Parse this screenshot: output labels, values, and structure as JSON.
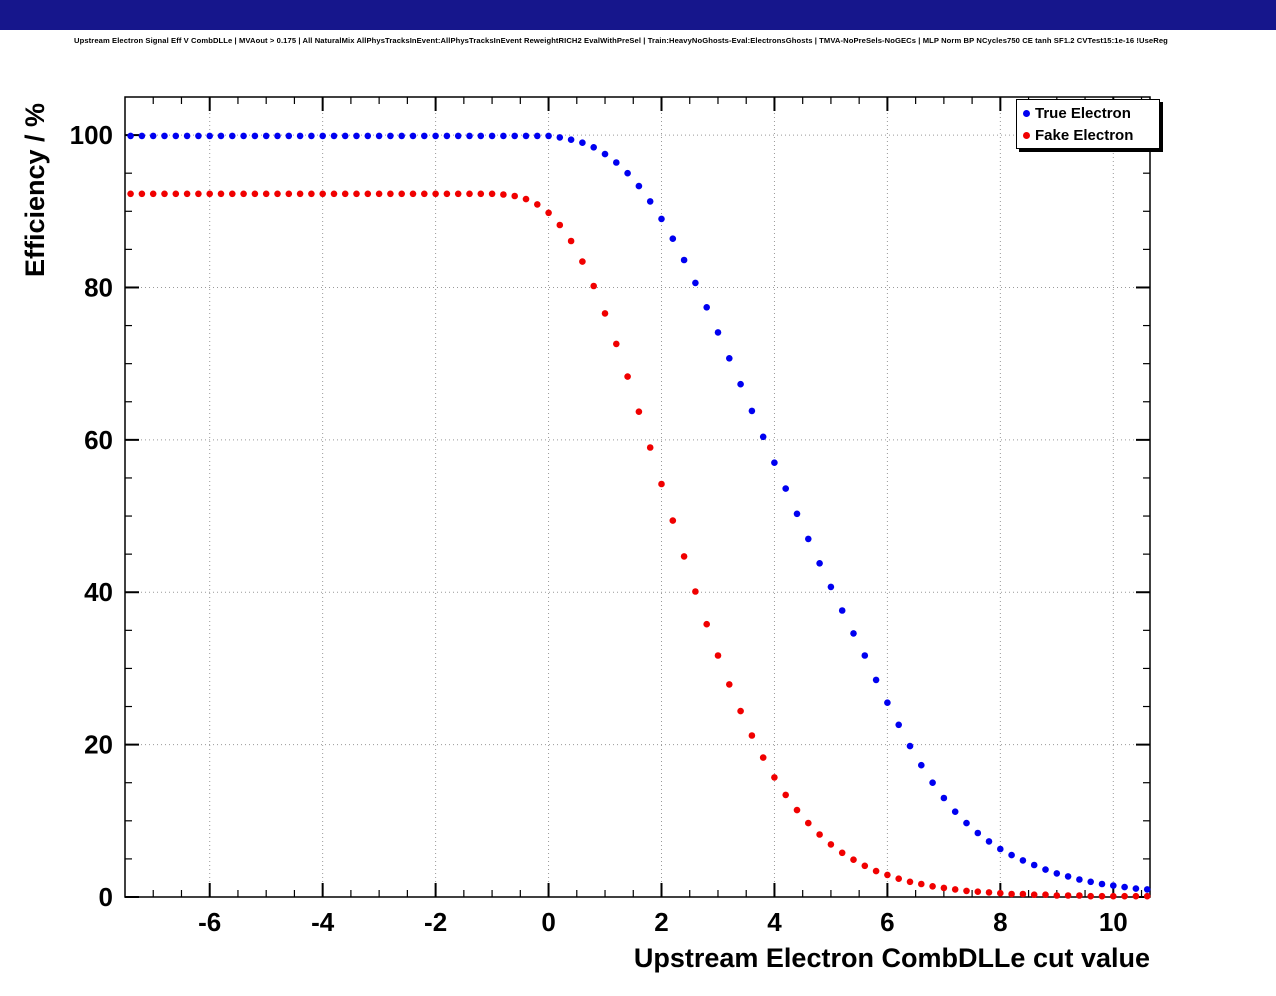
{
  "page": {
    "background": "#ffffff",
    "header_bar_color": "#16168c"
  },
  "header": {
    "title": "Upstream Electron Signal Eff V CombDLLe | MVAout > 0.175 | All NaturalMix AllPhysTracksInEvent:AllPhysTracksInEvent ReweightRICH2 EvalWithPreSel | Train:HeavyNoGhosts-Eval:ElectronsGhosts | TMVA-NoPreSels-NoGECs | MLP Norm BP NCycles750 CE tanh SF1.2 CVTest15:1e-16 !UseReg"
  },
  "chart_data": {
    "type": "scatter",
    "title": "",
    "xlabel": "Upstream Electron CombDLLe cut value",
    "ylabel": "Efficiency / %",
    "xlim": [
      -7.5,
      10.65
    ],
    "ylim": [
      0,
      105
    ],
    "xticks": [
      -6,
      -4,
      -2,
      0,
      2,
      4,
      6,
      8,
      10
    ],
    "yticks": [
      0,
      20,
      40,
      60,
      80,
      100
    ],
    "minor_x_step": 0.5,
    "minor_y_step": 5,
    "grid": "dotted",
    "grid_color": "#999999",
    "legend_position": "top-right",
    "marker_radius": 3.3,
    "x": [
      -7.4,
      -7.2,
      -7,
      -6.8,
      -6.6,
      -6.4,
      -6.2,
      -6,
      -5.8,
      -5.6,
      -5.4,
      -5.2,
      -5,
      -4.8,
      -4.6,
      -4.4,
      -4.2,
      -4,
      -3.8,
      -3.6,
      -3.4,
      -3.2,
      -3,
      -2.8,
      -2.6,
      -2.4,
      -2.2,
      -2,
      -1.8,
      -1.6,
      -1.4,
      -1.2,
      -1,
      -0.8,
      -0.6,
      -0.4,
      -0.2,
      0,
      0.2,
      0.4,
      0.6,
      0.8,
      1,
      1.2,
      1.4,
      1.6,
      1.8,
      2,
      2.2,
      2.4,
      2.6,
      2.8,
      3,
      3.2,
      3.4,
      3.6,
      3.8,
      4,
      4.2,
      4.4,
      4.6,
      4.8,
      5,
      5.2,
      5.4,
      5.6,
      5.8,
      6,
      6.2,
      6.4,
      6.6,
      6.8,
      7,
      7.2,
      7.4,
      7.6,
      7.8,
      8,
      8.2,
      8.4,
      8.6,
      8.8,
      9,
      9.2,
      9.4,
      9.6,
      9.8,
      10,
      10.2,
      10.4,
      10.6
    ],
    "series": [
      {
        "name": "True Electron",
        "color": "#0000f0",
        "values": [
          99.9,
          99.9,
          99.9,
          99.9,
          99.9,
          99.9,
          99.9,
          99.9,
          99.9,
          99.9,
          99.9,
          99.9,
          99.9,
          99.9,
          99.9,
          99.9,
          99.9,
          99.9,
          99.9,
          99.9,
          99.9,
          99.9,
          99.9,
          99.9,
          99.9,
          99.9,
          99.9,
          99.9,
          99.9,
          99.9,
          99.9,
          99.9,
          99.9,
          99.9,
          99.9,
          99.9,
          99.9,
          99.9,
          99.7,
          99.4,
          99.0,
          98.4,
          97.5,
          96.4,
          95.0,
          93.3,
          91.3,
          89.0,
          86.4,
          83.6,
          80.6,
          77.4,
          74.1,
          70.7,
          67.3,
          63.8,
          60.4,
          57.0,
          53.6,
          50.3,
          47.0,
          43.8,
          40.7,
          37.6,
          34.6,
          31.7,
          28.5,
          25.5,
          22.6,
          19.8,
          17.3,
          15.0,
          13.0,
          11.2,
          9.7,
          8.4,
          7.3,
          6.3,
          5.5,
          4.8,
          4.2,
          3.6,
          3.1,
          2.7,
          2.3,
          2.0,
          1.7,
          1.5,
          1.3,
          1.1,
          1.0
        ]
      },
      {
        "name": "Fake Electron",
        "color": "#f00000",
        "values": [
          92.3,
          92.3,
          92.3,
          92.3,
          92.3,
          92.3,
          92.3,
          92.3,
          92.3,
          92.3,
          92.3,
          92.3,
          92.3,
          92.3,
          92.3,
          92.3,
          92.3,
          92.3,
          92.3,
          92.3,
          92.3,
          92.3,
          92.3,
          92.3,
          92.3,
          92.3,
          92.3,
          92.3,
          92.3,
          92.3,
          92.3,
          92.3,
          92.3,
          92.2,
          92.0,
          91.6,
          90.9,
          89.8,
          88.2,
          86.1,
          83.4,
          80.2,
          76.6,
          72.6,
          68.3,
          63.7,
          59.0,
          54.2,
          49.4,
          44.7,
          40.1,
          35.8,
          31.7,
          27.9,
          24.4,
          21.2,
          18.3,
          15.7,
          13.4,
          11.4,
          9.7,
          8.2,
          6.9,
          5.8,
          4.9,
          4.1,
          3.4,
          2.9,
          2.4,
          2.0,
          1.7,
          1.4,
          1.2,
          1.0,
          0.8,
          0.7,
          0.6,
          0.5,
          0.4,
          0.4,
          0.3,
          0.3,
          0.2,
          0.2,
          0.2,
          0.1,
          0.1,
          0.1,
          0.1,
          0.1,
          0.1
        ]
      }
    ]
  }
}
